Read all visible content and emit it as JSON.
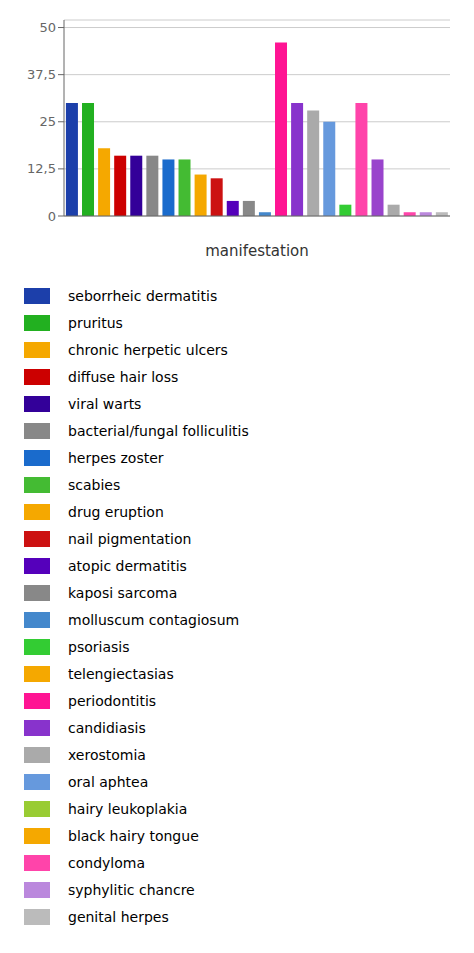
{
  "chart_data": {
    "type": "bar",
    "xlabel": "manifestation",
    "categories": [
      null,
      null,
      null,
      null,
      null,
      null,
      null,
      null,
      null,
      null,
      null,
      null,
      null,
      null,
      null,
      null,
      null,
      null,
      null,
      null,
      null,
      null,
      null,
      null
    ],
    "values": [
      30,
      30,
      18,
      16,
      16,
      16,
      15,
      15,
      11,
      10,
      4,
      4,
      1,
      46,
      30,
      28,
      25,
      3,
      30,
      15,
      3,
      1,
      1,
      1
    ],
    "colors": [
      "#1c3faa",
      "#22b020",
      "#f5a800",
      "#cc0000",
      "#330099",
      "#888888",
      "#1a6bcc",
      "#44bb33",
      "#f5a800",
      "#cc1111",
      "#5500bb",
      "#888888",
      "#4488cc",
      "#ff1493",
      "#8833cc",
      "#aaaaaa",
      "#6699dd",
      "#33cc33",
      "#ff44aa",
      "#9944cc",
      "#aaaaaa",
      "#ff44aa",
      "#bb88dd",
      "#bbbbbb"
    ],
    "ylim": [
      0,
      52
    ],
    "yticks": [
      0,
      {
        "value": 12.5,
        "label": "12,5"
      },
      25,
      {
        "value": 37.5,
        "label": "37,5"
      },
      50
    ],
    "grid": true,
    "tick_labels": "y",
    "legend_entries": [
      {
        "label": "seborrheic dermatitis",
        "color": "#1c3faa"
      },
      {
        "label": "pruritus",
        "color": "#22b020"
      },
      {
        "label": "chronic herpetic ulcers",
        "color": "#f5a800"
      },
      {
        "label": "diffuse hair loss",
        "color": "#cc0000"
      },
      {
        "label": "viral warts",
        "color": "#330099"
      },
      {
        "label": "bacterial/fungal folliculitis",
        "color": "#888888"
      },
      {
        "label": "herpes zoster",
        "color": "#1a6bcc"
      },
      {
        "label": "scabies",
        "color": "#44bb33"
      },
      {
        "label": "drug eruption",
        "color": "#f5a800"
      },
      {
        "label": "nail pigmentation",
        "color": "#cc1111"
      },
      {
        "label": "atopic dermatitis",
        "color": "#5500bb"
      },
      {
        "label": "kaposi sarcoma",
        "color": "#888888"
      },
      {
        "label": "molluscum contagiosum",
        "color": "#4488cc"
      },
      {
        "label": "psoriasis",
        "color": "#33cc33"
      },
      {
        "label": "telengiectasias",
        "color": "#f5a800"
      },
      {
        "label": "periodontitis",
        "color": "#ff1493"
      },
      {
        "label": "candidiasis",
        "color": "#8833cc"
      },
      {
        "label": "xerostomia",
        "color": "#aaaaaa"
      },
      {
        "label": "oral aphtea",
        "color": "#6699dd"
      },
      {
        "label": "hairy leukoplakia",
        "color": "#99cc33"
      },
      {
        "label": "black hairy tongue",
        "color": "#f5a800"
      },
      {
        "label": "condyloma",
        "color": "#ff44aa"
      },
      {
        "label": "syphylitic chancre",
        "color": "#bb88dd"
      },
      {
        "label": "genital herpes",
        "color": "#bbbbbb"
      }
    ]
  }
}
